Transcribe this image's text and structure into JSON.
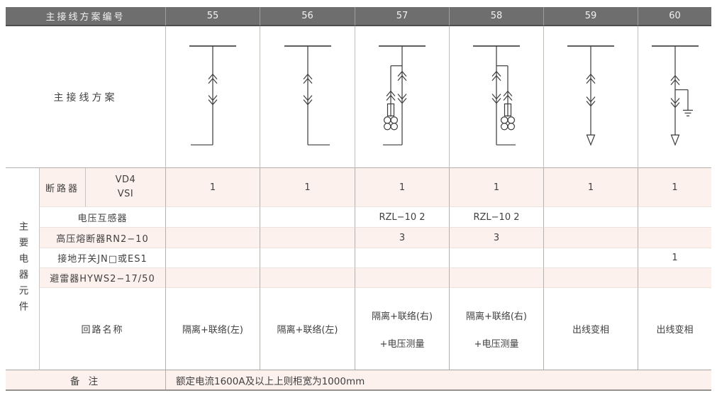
{
  "header": {
    "title": "主接线方案编号",
    "scheme_numbers": [
      "55",
      "56",
      "57",
      "58",
      "59",
      "60"
    ]
  },
  "diagram_section": {
    "label": "主接线方案",
    "diagrams": [
      {
        "scheme": "55",
        "type": "breaker",
        "foot": "left"
      },
      {
        "scheme": "56",
        "type": "breaker",
        "foot": "right"
      },
      {
        "scheme": "57",
        "type": "breaker-pt",
        "branch": "left",
        "foot": "left"
      },
      {
        "scheme": "58",
        "type": "breaker-pt",
        "branch": "right",
        "foot": "right"
      },
      {
        "scheme": "59",
        "type": "breaker-outgoing",
        "terminal": "arrow"
      },
      {
        "scheme": "60",
        "type": "breaker-outgoing-earth",
        "terminal": "arrow",
        "ground": "right"
      }
    ]
  },
  "components": {
    "group_label": "主要电器元件",
    "breaker_row": {
      "label": "断路器",
      "models": [
        "VD4",
        "VSI"
      ],
      "values": [
        "1",
        "1",
        "1",
        "1",
        "1",
        "1"
      ]
    },
    "rows": [
      {
        "label": "电压互感器",
        "values": [
          "",
          "",
          "RZL−10 2",
          "RZL−10 2",
          "",
          ""
        ]
      },
      {
        "label": "高压熔断器RN2−10",
        "values": [
          "",
          "",
          "3",
          "3",
          "",
          ""
        ]
      },
      {
        "label": "接地开关JN□或ES1",
        "values": [
          "",
          "",
          "",
          "",
          "",
          "1"
        ]
      },
      {
        "label": "避雷器HYWS2−17/50",
        "values": [
          "",
          "",
          "",
          "",
          "",
          ""
        ]
      }
    ],
    "circuit_row": {
      "label": "回路名称",
      "values": [
        [
          "隔离+联络(左)"
        ],
        [
          "隔离+联络(左)"
        ],
        [
          "隔离+联络(右)",
          "+电压测量"
        ],
        [
          "隔离+联络(右)",
          "+电压测量"
        ],
        [
          "出线变相"
        ],
        [
          "出线变相"
        ]
      ]
    }
  },
  "remark": {
    "label": "备 注",
    "text": "额定电流1600A及以上上则柜宽为1000mm"
  },
  "colors": {
    "header_bg": "#6e6e6e",
    "header_text": "#f2f2f2",
    "stripe_pink": "#fcf1ed",
    "grid_line": "#b3afab",
    "diagram_stroke": "#3a3a3a"
  }
}
